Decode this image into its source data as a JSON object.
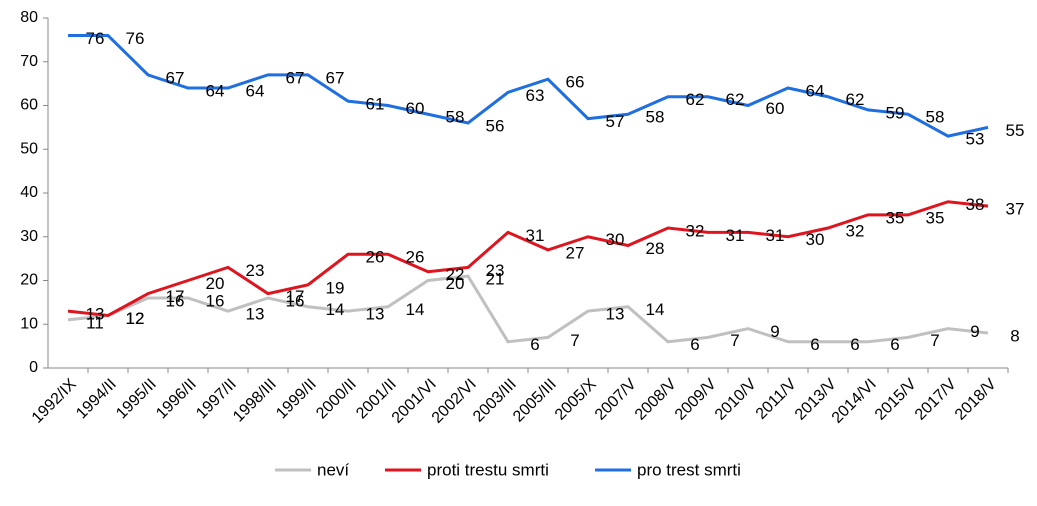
{
  "chart_data": {
    "type": "line",
    "categories": [
      "1992/IX",
      "1994/II",
      "1995/II",
      "1996/II",
      "1997/II",
      "1998/III",
      "1999/II",
      "2000/II",
      "2001/II",
      "2001/VI",
      "2002/VI",
      "2003/III",
      "2005/III",
      "2005/X",
      "2007/V",
      "2008/V",
      "2009/V",
      "2010/V",
      "2011/V",
      "2013/V",
      "2014/VI",
      "2015/V",
      "2017/V",
      "2018/V"
    ],
    "series": [
      {
        "name": "neví",
        "color": "#c0c0c0",
        "values": [
          11,
          12,
          16,
          16,
          13,
          16,
          14,
          13,
          14,
          20,
          21,
          6,
          7,
          13,
          14,
          6,
          7,
          9,
          6,
          6,
          6,
          7,
          9,
          8
        ]
      },
      {
        "name": "proti trestu smrti",
        "color": "#e0141e",
        "values": [
          13,
          12,
          17,
          20,
          23,
          17,
          19,
          26,
          26,
          22,
          23,
          31,
          27,
          30,
          28,
          32,
          31,
          31,
          30,
          32,
          35,
          35,
          38,
          37
        ]
      },
      {
        "name": "pro trest smrti",
        "color": "#1f6fe0",
        "values": [
          76,
          76,
          67,
          64,
          64,
          67,
          67,
          61,
          60,
          58,
          56,
          63,
          66,
          57,
          58,
          62,
          62,
          60,
          64,
          62,
          59,
          58,
          53,
          55
        ]
      }
    ],
    "ylim": [
      0,
      80
    ],
    "yticks": [
      0,
      10,
      20,
      30,
      40,
      50,
      60,
      70,
      80
    ],
    "grid": false,
    "legend": "bottom"
  }
}
